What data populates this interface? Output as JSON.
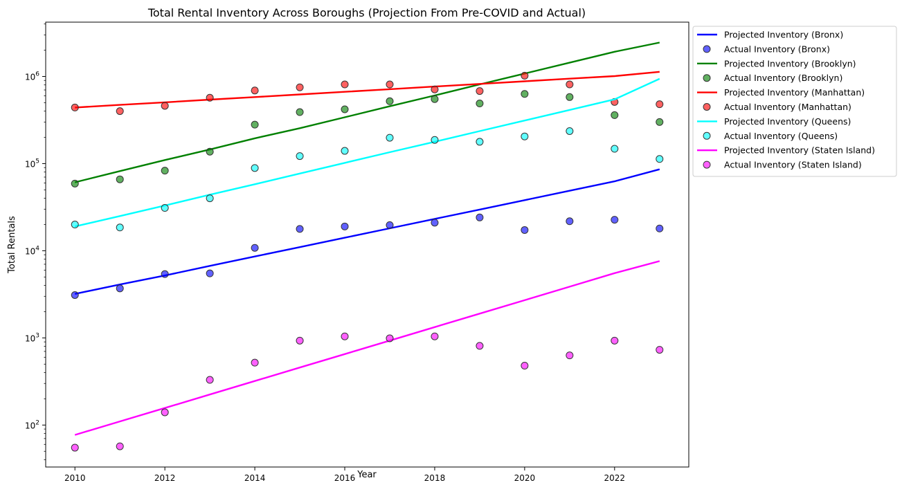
{
  "chart_data": {
    "type": "line",
    "title": "Total Rental Inventory Across Boroughs (Projection From Pre-COVID and Actual)",
    "xlabel": "Year",
    "ylabel": "Total Rentals",
    "x_ticks": [
      2010,
      2012,
      2014,
      2016,
      2018,
      2020,
      2022
    ],
    "y_scale": "log",
    "y_ticks": [
      {
        "value": 100,
        "base": "10",
        "exp": "2"
      },
      {
        "value": 1000,
        "base": "10",
        "exp": "3"
      },
      {
        "value": 10000,
        "base": "10",
        "exp": "4"
      },
      {
        "value": 100000,
        "base": "10",
        "exp": "5"
      },
      {
        "value": 1000000,
        "base": "10",
        "exp": "6"
      }
    ],
    "xlim": [
      2009.35,
      2023.65
    ],
    "ylim": [
      33,
      4200000
    ],
    "grid": false,
    "legend_position": "outside-right-top",
    "years": [
      2010,
      2011,
      2012,
      2013,
      2014,
      2015,
      2016,
      2017,
      2018,
      2019,
      2020,
      2021,
      2022,
      2023
    ],
    "series": [
      {
        "borough": "Bronx",
        "color": "#0000ff",
        "projected_name": "Projected Inventory (Bronx)",
        "actual_name": "Actual Inventory (Bronx)",
        "projected": [
          3200,
          4100,
          5200,
          6700,
          8600,
          11000,
          14100,
          18100,
          23200,
          29700,
          38100,
          48800,
          62600,
          86000
        ],
        "actual": [
          3100,
          3700,
          5400,
          5500,
          10800,
          17800,
          19000,
          19700,
          21000,
          24100,
          17300,
          21800,
          22700,
          18000
        ]
      },
      {
        "borough": "Brooklyn",
        "color": "#008000",
        "projected_name": "Projected Inventory (Brooklyn)",
        "actual_name": "Actual Inventory (Brooklyn)",
        "projected": [
          61000,
          82000,
          110000,
          145000,
          195000,
          255000,
          340000,
          455000,
          605000,
          810000,
          1080000,
          1440000,
          1920000,
          2450000
        ],
        "actual": [
          59000,
          66000,
          83000,
          137000,
          280000,
          390000,
          420000,
          520000,
          550000,
          490000,
          630000,
          580000,
          360000,
          300000
        ]
      },
      {
        "borough": "Manhattan",
        "color": "#ff0000",
        "projected_name": "Projected Inventory (Manhattan)",
        "actual_name": "Actual Inventory (Manhattan)",
        "projected": [
          440000,
          472000,
          505000,
          542000,
          580000,
          622000,
          667000,
          715000,
          766000,
          821000,
          880000,
          943000,
          1010000,
          1130000
        ],
        "actual": [
          440000,
          400000,
          460000,
          570000,
          690000,
          750000,
          810000,
          810000,
          710000,
          680000,
          1020000,
          810000,
          510000,
          480000
        ]
      },
      {
        "borough": "Queens",
        "color": "#00ffff",
        "projected_name": "Projected Inventory (Queens)",
        "actual_name": "Actual Inventory (Queens)",
        "projected": [
          19000,
          25000,
          33000,
          44000,
          58000,
          77000,
          102000,
          135000,
          178000,
          236000,
          312000,
          413000,
          546000,
          940000
        ],
        "actual": [
          20000,
          18500,
          31000,
          40000,
          89000,
          122000,
          140000,
          198000,
          187000,
          178000,
          205000,
          236000,
          148000,
          113000
        ]
      },
      {
        "borough": "Staten Island",
        "color": "#ff00ff",
        "projected_name": "Projected Inventory (Staten Island)",
        "actual_name": "Actual Inventory (Staten Island)",
        "projected": [
          77,
          110,
          157,
          224,
          320,
          457,
          652,
          931,
          1330,
          1900,
          2710,
          3870,
          5530,
          7600
        ],
        "actual": [
          55,
          57,
          140,
          330,
          520,
          930,
          1040,
          990,
          1040,
          810,
          480,
          630,
          930,
          730
        ]
      }
    ]
  }
}
